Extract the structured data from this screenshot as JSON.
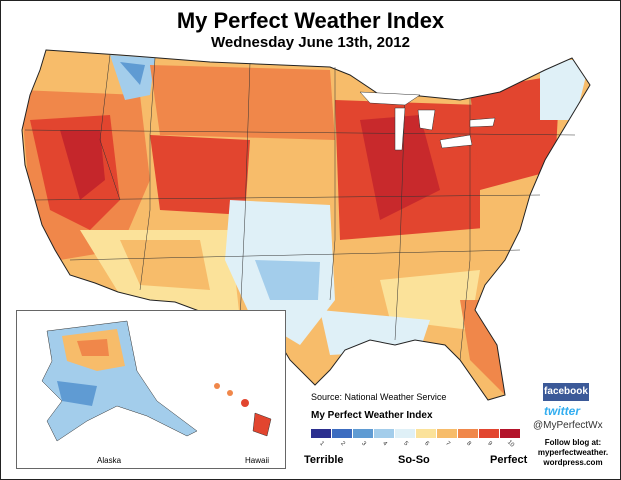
{
  "header": {
    "title": "My Perfect Weather Index",
    "subtitle": "Wednesday June 13th, 2012"
  },
  "map": {
    "source": "Source: National Weather Service",
    "inset_labels": {
      "alaska": "Alaska",
      "hawaii": "Hawaii"
    },
    "colors": {
      "1": "#2b2f8f",
      "2": "#3c6cc0",
      "3": "#5f9bd3",
      "4": "#a3cdeb",
      "5": "#dff0f7",
      "6": "#fbe29a",
      "7": "#f7bc6a",
      "8": "#f0874a",
      "9": "#e2452f",
      "10": "#b3132a"
    }
  },
  "legend": {
    "title": "My Perfect Weather Index",
    "values": [
      "1",
      "2",
      "3",
      "4",
      "5",
      "6",
      "7",
      "8",
      "9",
      "10"
    ],
    "low_label": "Terrible",
    "mid_label": "So-So",
    "high_label": "Perfect"
  },
  "social": {
    "facebook": "facebook",
    "twitter": "twitter",
    "twitter_handle": "@MyPerfectWx",
    "blog_line1": "Follow blog at:",
    "blog_line2": "myperfectweather.",
    "blog_line3": "wordpress.com"
  }
}
